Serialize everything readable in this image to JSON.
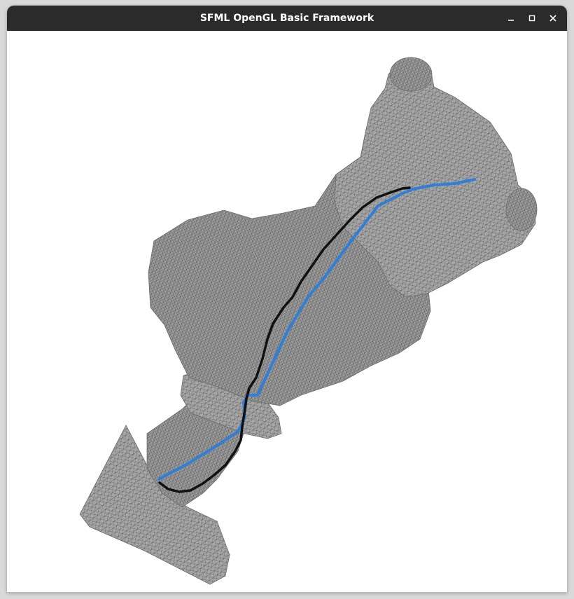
{
  "window": {
    "title": "SFML OpenGL Basic Framework",
    "controls": {
      "minimize_icon": "minimize-icon",
      "maximize_icon": "maximize-icon",
      "close_icon": "close-icon"
    }
  },
  "scene": {
    "background": "#ffffff",
    "mesh_fill": "#9a9a9a",
    "mesh_wire": "#555555",
    "paths": [
      {
        "color": "#2f7ed8"
      },
      {
        "color": "#111111"
      }
    ]
  }
}
